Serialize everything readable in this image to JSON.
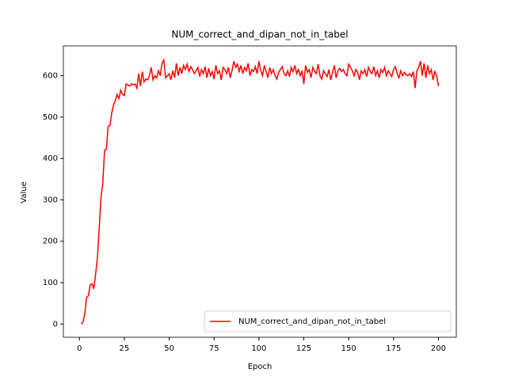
{
  "chart_data": {
    "type": "line",
    "title": "NUM_correct_and_dipan_not_in_tabel",
    "x_label": "Epoch",
    "y_label": "Value",
    "x": [
      1,
      2,
      3,
      4,
      5,
      6,
      7,
      8,
      9,
      10,
      11,
      12,
      13,
      14,
      15,
      16,
      17,
      18,
      19,
      20,
      21,
      22,
      23,
      24,
      25,
      26,
      27,
      28,
      29,
      30,
      31,
      32,
      33,
      34,
      35,
      36,
      37,
      38,
      39,
      40,
      41,
      42,
      43,
      44,
      45,
      46,
      47,
      48,
      49,
      50,
      51,
      52,
      53,
      54,
      55,
      56,
      57,
      58,
      59,
      60,
      61,
      62,
      63,
      64,
      65,
      66,
      67,
      68,
      69,
      70,
      71,
      72,
      73,
      74,
      75,
      76,
      77,
      78,
      79,
      80,
      81,
      82,
      83,
      84,
      85,
      86,
      87,
      88,
      89,
      90,
      91,
      92,
      93,
      94,
      95,
      96,
      97,
      98,
      99,
      100,
      101,
      102,
      103,
      104,
      105,
      106,
      107,
      108,
      109,
      110,
      111,
      112,
      113,
      114,
      115,
      116,
      117,
      118,
      119,
      120,
      121,
      122,
      123,
      124,
      125,
      126,
      127,
      128,
      129,
      130,
      131,
      132,
      133,
      134,
      135,
      136,
      137,
      138,
      139,
      140,
      141,
      142,
      143,
      144,
      145,
      146,
      147,
      148,
      149,
      150,
      151,
      152,
      153,
      154,
      155,
      156,
      157,
      158,
      159,
      160,
      161,
      162,
      163,
      164,
      165,
      166,
      167,
      168,
      169,
      170,
      171,
      172,
      173,
      174,
      175,
      176,
      177,
      178,
      179,
      180,
      181,
      182,
      183,
      184,
      185,
      186,
      187,
      188,
      189,
      190,
      191,
      192,
      193,
      194,
      195,
      196,
      197,
      198,
      199,
      200
    ],
    "series": [
      {
        "name": "NUM_correct_and_dipan_not_in_tabel",
        "color": "#ff0000",
        "values": [
          0,
          5,
          25,
          65,
          68,
          95,
          97,
          85,
          120,
          160,
          230,
          305,
          340,
          420,
          422,
          478,
          480,
          510,
          530,
          540,
          555,
          545,
          565,
          555,
          552,
          580,
          578,
          575,
          580,
          578,
          580,
          570,
          605,
          575,
          610,
          585,
          592,
          590,
          600,
          620,
          590,
          600,
          595,
          612,
          600,
          630,
          638,
          595,
          600,
          605,
          590,
          612,
          595,
          630,
          600,
          620,
          605,
          625,
          615,
          628,
          610,
          622,
          615,
          605,
          612,
          620,
          598,
          615,
          605,
          622,
          595,
          618,
          600,
          610,
          592,
          625,
          605,
          612,
          590,
          620,
          615,
          605,
          620,
          595,
          612,
          635,
          620,
          628,
          610,
          625,
          605,
          620,
          612,
          630,
          600,
          615,
          610,
          622,
          605,
          635,
          612,
          600,
          625,
          610,
          595,
          620,
          605,
          615,
          600,
          592,
          608,
          615,
          622,
          605,
          600,
          612,
          598,
          620,
          610,
          625,
          605,
          615,
          600,
          612,
          580,
          625,
          608,
          615,
          595,
          620,
          610,
          605,
          628,
          600,
          592,
          612,
          605,
          598,
          615,
          590,
          608,
          625,
          595,
          612,
          618,
          610,
          615,
          605,
          600,
          628,
          620,
          612,
          600,
          615,
          608,
          590,
          612,
          605,
          615,
          598,
          620,
          610,
          605,
          622,
          600,
          612,
          595,
          615,
          608,
          620,
          600,
          612,
          605,
          598,
          615,
          622,
          605,
          595,
          612,
          600,
          608,
          602,
          600,
          605,
          598,
          610,
          570,
          612,
          620,
          635,
          600,
          630,
          595,
          625,
          605,
          615,
          590,
          610,
          600,
          575
        ]
      }
    ],
    "xlim": [
      -8.95,
      209.95
    ],
    "ylim": [
      -32,
      672
    ],
    "xticks": [
      0,
      25,
      50,
      75,
      100,
      125,
      150,
      175,
      200
    ],
    "yticks": [
      0,
      100,
      200,
      300,
      400,
      500,
      600
    ],
    "legend": "lower right"
  }
}
